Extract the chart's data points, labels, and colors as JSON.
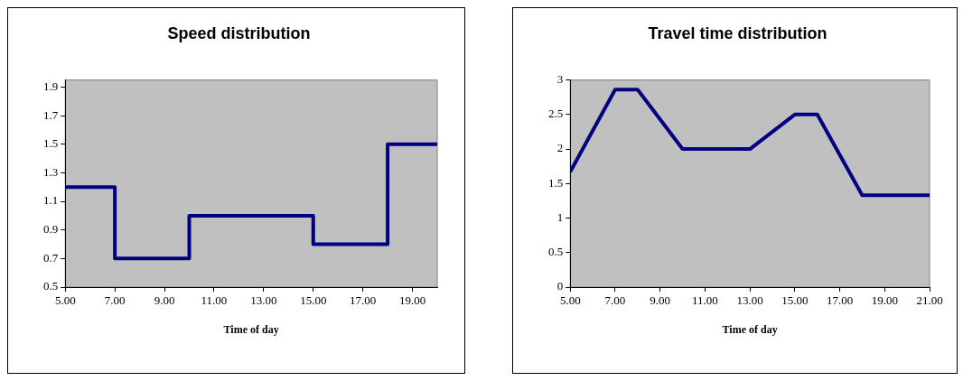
{
  "chart_data": [
    {
      "type": "step",
      "title": "Speed distribution",
      "xlabel": "Time of day",
      "x": [
        5,
        7,
        10,
        15,
        18,
        20
      ],
      "series": [
        {
          "color": "#000080",
          "values": [
            1.2,
            0.7,
            1.0,
            0.8,
            1.5,
            1.5
          ]
        }
      ],
      "xlim": [
        5,
        20
      ],
      "xticks": [
        {
          "value": 5,
          "label": "5.00"
        },
        {
          "value": 7,
          "label": "7.00"
        },
        {
          "value": 9,
          "label": "9.00"
        },
        {
          "value": 11,
          "label": "11.00"
        },
        {
          "value": 13,
          "label": "13.00"
        },
        {
          "value": 15,
          "label": "15.00"
        },
        {
          "value": 17,
          "label": "17.00"
        },
        {
          "value": 19,
          "label": "19.00"
        }
      ],
      "ylim": [
        0.5,
        1.95
      ],
      "yticks": [
        0.5,
        0.7,
        0.9,
        1.1,
        1.3,
        1.5,
        1.7,
        1.9
      ],
      "legend": false
    },
    {
      "type": "line",
      "title": "Travel time distribution",
      "xlabel": "Time of day",
      "x": [
        5,
        7,
        8,
        10,
        13,
        15,
        16,
        18,
        21
      ],
      "series": [
        {
          "color": "#000080",
          "values": [
            1.67,
            2.86,
            2.86,
            2.0,
            2.0,
            2.5,
            2.5,
            1.33,
            1.33
          ]
        }
      ],
      "xlim": [
        5,
        21
      ],
      "xticks": [
        {
          "value": 5,
          "label": "5.00"
        },
        {
          "value": 7,
          "label": "7.00"
        },
        {
          "value": 9,
          "label": "9.00"
        },
        {
          "value": 11,
          "label": "11.00"
        },
        {
          "value": 13,
          "label": "13.00"
        },
        {
          "value": 15,
          "label": "15.00"
        },
        {
          "value": 17,
          "label": "17.00"
        },
        {
          "value": 19,
          "label": "19.00"
        },
        {
          "value": 21,
          "label": "21.00"
        }
      ],
      "ylim": [
        0,
        3
      ],
      "yticks": [
        0,
        0.5,
        1,
        1.5,
        2,
        2.5,
        3
      ],
      "legend": false
    }
  ]
}
